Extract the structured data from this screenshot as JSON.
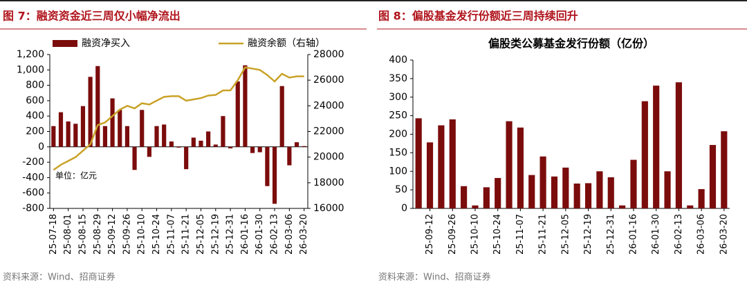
{
  "chart_data": [
    {
      "type": "bar",
      "heading": "图 7：融资资金近三周仅小幅净流出",
      "source": "资料来源：Wind、招商证券",
      "annotation": "单位：亿元",
      "categories": [
        "25-07-18",
        null,
        "25-08-01",
        null,
        "25-08-15",
        null,
        "25-08-29",
        null,
        "25-09-12",
        null,
        "25-09-26",
        null,
        "25-10-10",
        null,
        "25-10-24",
        null,
        "25-11-07",
        null,
        "25-11-21",
        null,
        "25-12-05",
        null,
        "25-12-19",
        null,
        "25-12-31",
        null,
        "26-01-16",
        null,
        "26-01-30",
        null,
        "26-02-13",
        null,
        "26-03-06",
        null,
        "26-03-20"
      ],
      "series": [
        {
          "name": "融资净买入",
          "type": "bar",
          "color": "#7b0c0c",
          "values": [
            270,
            450,
            330,
            300,
            530,
            910,
            1050,
            270,
            630,
            480,
            270,
            -300,
            480,
            -130,
            270,
            290,
            70,
            -10,
            -290,
            120,
            80,
            200,
            30,
            400,
            -20,
            850,
            1060,
            -80,
            -70,
            -510,
            -740,
            790,
            -240,
            60,
            10
          ]
        },
        {
          "name": "融资余额（右轴）",
          "type": "line",
          "axis": "y2",
          "color": "#c9a227",
          "values": [
            19000,
            19400,
            19700,
            20000,
            20500,
            21000,
            22500,
            22700,
            23200,
            23700,
            24000,
            23800,
            24200,
            24100,
            24400,
            24700,
            24750,
            24750,
            24400,
            24500,
            24600,
            24800,
            24850,
            25200,
            25200,
            26000,
            27000,
            26900,
            26800,
            26400,
            25900,
            26500,
            26200,
            26300,
            26300
          ]
        }
      ],
      "ylim": [
        -800,
        1200
      ],
      "yticks": [
        -800,
        -600,
        -400,
        -200,
        0,
        200,
        400,
        600,
        800,
        {
          "value": 1000,
          "label": "1,000"
        },
        {
          "value": 1200,
          "label": "1,200"
        }
      ],
      "y2lim": [
        16000,
        28000
      ],
      "y2ticks": [
        16000,
        18000,
        20000,
        22000,
        24000,
        26000,
        28000
      ],
      "legend": "top"
    },
    {
      "type": "bar",
      "heading": "图 8：偏股基金发行份额近三周持续回升",
      "source": "资料来源：Wind、招商证券",
      "title": "偏股类公募基金发行份额（亿份）",
      "categories": [
        null,
        "25-09-12",
        null,
        "25-09-26",
        null,
        "25-10-10",
        null,
        "25-10-24",
        null,
        "25-11-07",
        null,
        "25-11-21",
        null,
        "25-12-05",
        null,
        "25-12-19",
        null,
        "25-12-31",
        null,
        "26-01-16",
        null,
        "26-01-30",
        null,
        "26-02-13",
        null,
        "26-03-06",
        null,
        "26-03-20"
      ],
      "series": [
        {
          "type": "bar",
          "color": "#7b0c0c",
          "values": [
            243,
            178,
            224,
            240,
            60,
            8,
            57,
            82,
            235,
            218,
            90,
            140,
            86,
            110,
            67,
            68,
            100,
            84,
            8,
            131,
            289,
            331,
            100,
            340,
            8,
            52,
            171,
            208
          ]
        }
      ],
      "ylim": [
        0,
        400
      ],
      "yticks": [
        0,
        50,
        100,
        150,
        200,
        250,
        300,
        350,
        400
      ]
    }
  ]
}
